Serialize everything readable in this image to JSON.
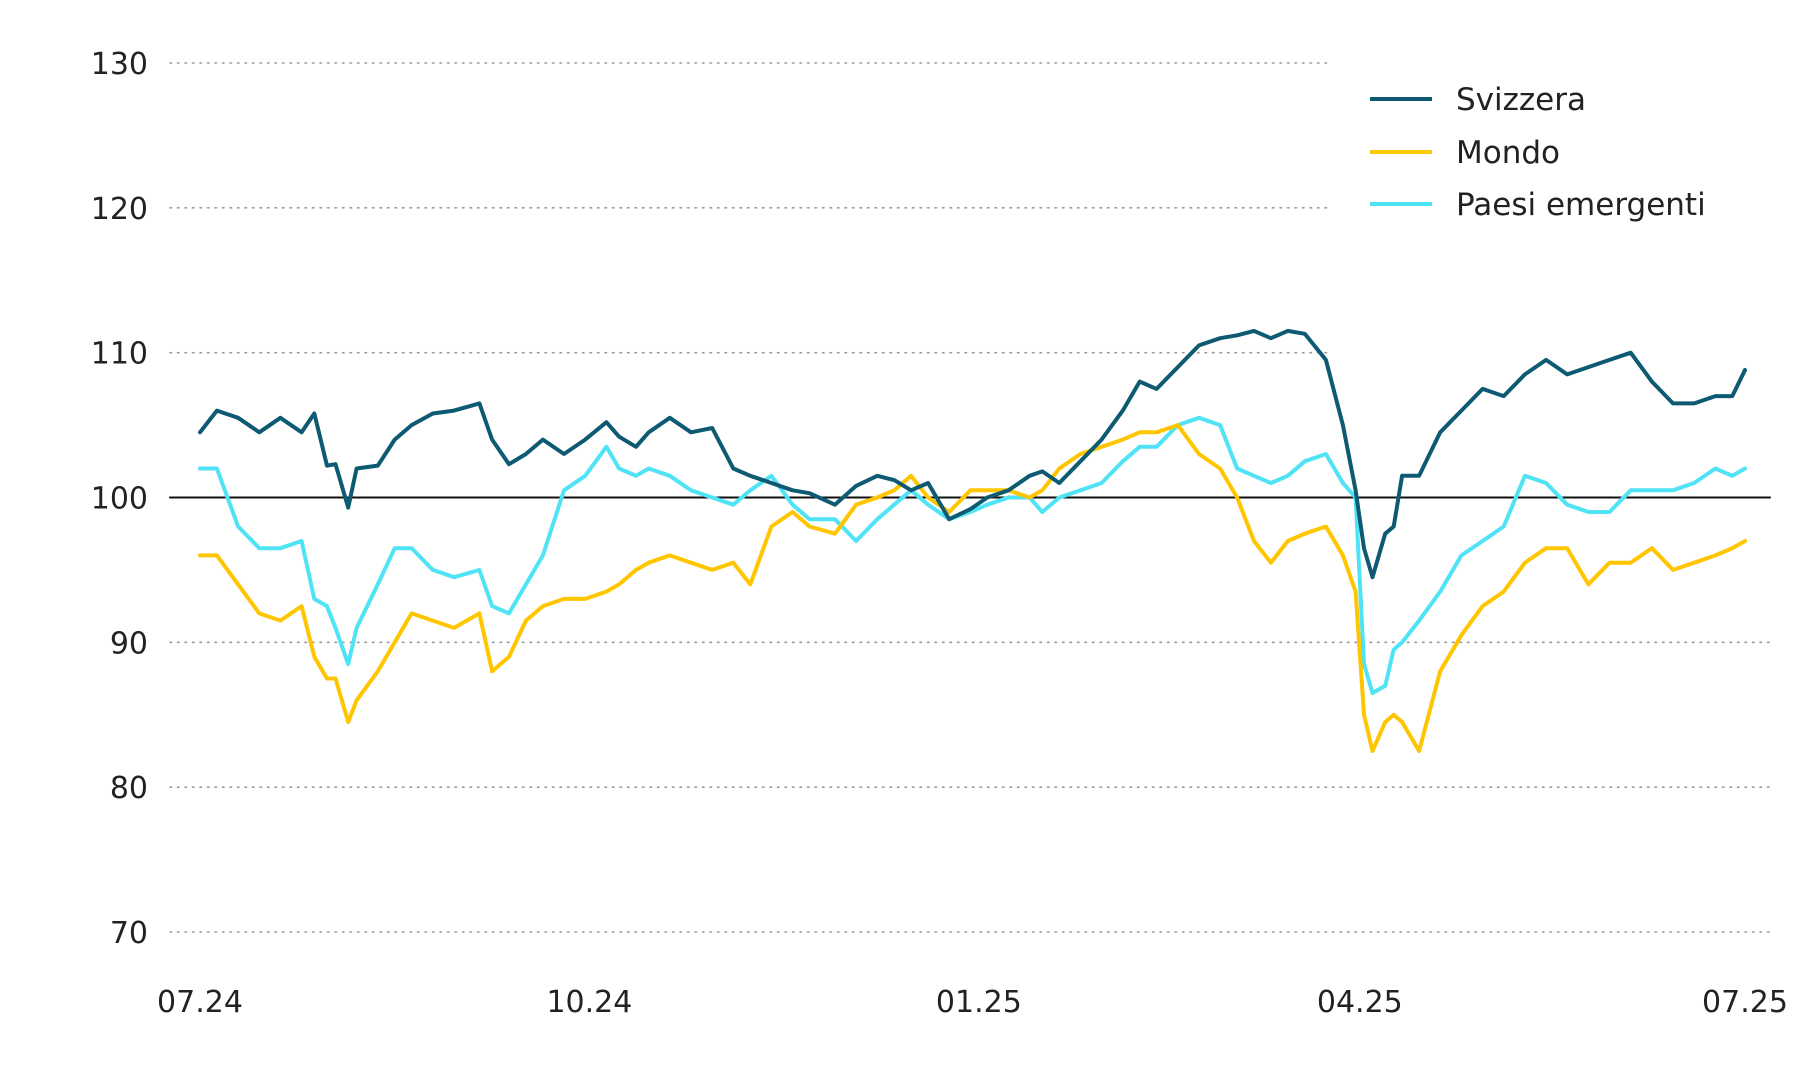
{
  "chart_data": {
    "type": "line",
    "title": "",
    "xlabel": "",
    "ylabel": "",
    "ylim": [
      70,
      130
    ],
    "xlim": [
      "2024-07-01",
      "2025-07-01"
    ],
    "yticks": [
      70,
      80,
      90,
      100,
      110,
      120,
      130
    ],
    "ytick_labels": [
      "70",
      "80",
      "90",
      "100",
      "110",
      "120",
      "130"
    ],
    "xticks": [
      "2024-07-01",
      "2024-10-01",
      "2025-01-01",
      "2025-04-01",
      "2025-07-01"
    ],
    "xtick_labels": [
      "07.24",
      "10.24",
      "01.25",
      "04.25",
      "07.25"
    ],
    "grid": "horizontal dotted",
    "reference_line": 100,
    "legend_position": "top-right",
    "series": [
      {
        "name": "Svizzera",
        "color": "#0d5a72",
        "x": [
          "2024-07-01",
          "2024-07-05",
          "2024-07-10",
          "2024-07-15",
          "2024-07-20",
          "2024-07-25",
          "2024-07-28",
          "2024-07-31",
          "2024-08-02",
          "2024-08-05",
          "2024-08-07",
          "2024-08-12",
          "2024-08-16",
          "2024-08-20",
          "2024-08-25",
          "2024-08-30",
          "2024-09-05",
          "2024-09-08",
          "2024-09-12",
          "2024-09-16",
          "2024-09-20",
          "2024-09-25",
          "2024-09-30",
          "2024-10-05",
          "2024-10-08",
          "2024-10-12",
          "2024-10-15",
          "2024-10-20",
          "2024-10-25",
          "2024-10-30",
          "2024-11-04",
          "2024-11-08",
          "2024-11-13",
          "2024-11-18",
          "2024-11-22",
          "2024-11-28",
          "2024-12-03",
          "2024-12-08",
          "2024-12-12",
          "2024-12-16",
          "2024-12-20",
          "2024-12-25",
          "2024-12-30",
          "2025-01-03",
          "2025-01-08",
          "2025-01-13",
          "2025-01-16",
          "2025-01-20",
          "2025-01-25",
          "2025-01-30",
          "2025-02-04",
          "2025-02-08",
          "2025-02-12",
          "2025-02-17",
          "2025-02-22",
          "2025-02-27",
          "2025-03-03",
          "2025-03-07",
          "2025-03-11",
          "2025-03-15",
          "2025-03-19",
          "2025-03-24",
          "2025-03-28",
          "2025-03-31",
          "2025-04-02",
          "2025-04-04",
          "2025-04-07",
          "2025-04-09",
          "2025-04-11",
          "2025-04-15",
          "2025-04-20",
          "2025-04-25",
          "2025-04-30",
          "2025-05-05",
          "2025-05-10",
          "2025-05-15",
          "2025-05-20",
          "2025-05-25",
          "2025-05-30",
          "2025-06-04",
          "2025-06-09",
          "2025-06-14",
          "2025-06-19",
          "2025-06-24",
          "2025-06-28",
          "2025-07-01"
        ],
        "values": [
          104.5,
          106,
          105.5,
          104.5,
          105.5,
          104.5,
          105.8,
          102.2,
          102.3,
          99.3,
          102,
          102.2,
          104,
          105,
          105.8,
          106,
          106.5,
          104,
          102.3,
          103,
          104,
          103,
          104,
          105.2,
          104.2,
          103.5,
          104.5,
          105.5,
          104.5,
          104.8,
          102,
          101.5,
          101,
          100.5,
          100.3,
          99.5,
          100.8,
          101.5,
          101.2,
          100.5,
          101,
          98.5,
          99.2,
          100,
          100.5,
          101.5,
          101.8,
          101,
          102.5,
          104,
          106,
          108,
          107.5,
          109,
          110.5,
          111,
          111.2,
          111.5,
          111,
          111.5,
          111.3,
          109.5,
          105,
          100.5,
          96.5,
          94.5,
          97.5,
          98,
          101.5,
          101.5,
          104.5,
          106,
          107.5,
          107,
          108.5,
          109.5,
          108.5,
          109,
          109.5,
          110,
          108,
          106.5,
          106.5,
          107,
          107,
          108.8
        ]
      },
      {
        "name": "Mondo",
        "color": "#ffc600",
        "x": [
          "2024-07-01",
          "2024-07-05",
          "2024-07-10",
          "2024-07-15",
          "2024-07-20",
          "2024-07-25",
          "2024-07-28",
          "2024-07-31",
          "2024-08-02",
          "2024-08-05",
          "2024-08-07",
          "2024-08-12",
          "2024-08-16",
          "2024-08-20",
          "2024-08-25",
          "2024-08-30",
          "2024-09-05",
          "2024-09-08",
          "2024-09-12",
          "2024-09-16",
          "2024-09-20",
          "2024-09-25",
          "2024-09-30",
          "2024-10-05",
          "2024-10-08",
          "2024-10-12",
          "2024-10-15",
          "2024-10-20",
          "2024-10-25",
          "2024-10-30",
          "2024-11-04",
          "2024-11-08",
          "2024-11-13",
          "2024-11-18",
          "2024-11-22",
          "2024-11-28",
          "2024-12-03",
          "2024-12-08",
          "2024-12-12",
          "2024-12-16",
          "2024-12-20",
          "2024-12-25",
          "2024-12-30",
          "2025-01-03",
          "2025-01-08",
          "2025-01-13",
          "2025-01-16",
          "2025-01-20",
          "2025-01-25",
          "2025-01-30",
          "2025-02-04",
          "2025-02-08",
          "2025-02-12",
          "2025-02-17",
          "2025-02-22",
          "2025-02-27",
          "2025-03-03",
          "2025-03-07",
          "2025-03-11",
          "2025-03-15",
          "2025-03-19",
          "2025-03-24",
          "2025-03-28",
          "2025-03-31",
          "2025-04-02",
          "2025-04-04",
          "2025-04-07",
          "2025-04-09",
          "2025-04-11",
          "2025-04-15",
          "2025-04-20",
          "2025-04-25",
          "2025-04-30",
          "2025-05-05",
          "2025-05-10",
          "2025-05-15",
          "2025-05-20",
          "2025-05-25",
          "2025-05-30",
          "2025-06-04",
          "2025-06-09",
          "2025-06-14",
          "2025-06-19",
          "2025-06-24",
          "2025-06-28",
          "2025-07-01"
        ],
        "values": [
          96,
          96,
          94,
          92,
          91.5,
          92.5,
          89,
          87.5,
          87.5,
          84.5,
          86,
          88,
          90,
          92,
          91.5,
          91,
          92,
          88,
          89,
          91.5,
          92.5,
          93,
          93,
          93.5,
          94,
          95,
          95.5,
          96,
          95.5,
          95,
          95.5,
          94,
          98,
          99,
          98,
          97.5,
          99.5,
          100,
          100.5,
          101.5,
          100,
          99,
          100.5,
          100.5,
          100.5,
          100,
          100.5,
          102,
          103,
          103.5,
          104,
          104.5,
          104.5,
          105,
          103,
          102,
          100,
          97,
          95.5,
          97,
          97.5,
          98,
          96,
          93.5,
          85,
          82.5,
          84.5,
          85,
          84.5,
          82.5,
          88,
          90.5,
          92.5,
          93.5,
          95.5,
          96.5,
          96.5,
          94,
          95.5,
          95.5,
          96.5,
          95,
          95.5,
          96,
          96.5,
          97
        ]
      },
      {
        "name": "Paesi emergenti",
        "color": "#4fe3f5",
        "x": [
          "2024-07-01",
          "2024-07-05",
          "2024-07-10",
          "2024-07-15",
          "2024-07-20",
          "2024-07-25",
          "2024-07-28",
          "2024-07-31",
          "2024-08-02",
          "2024-08-05",
          "2024-08-07",
          "2024-08-12",
          "2024-08-16",
          "2024-08-20",
          "2024-08-25",
          "2024-08-30",
          "2024-09-05",
          "2024-09-08",
          "2024-09-12",
          "2024-09-16",
          "2024-09-20",
          "2024-09-25",
          "2024-09-30",
          "2024-10-05",
          "2024-10-08",
          "2024-10-12",
          "2024-10-15",
          "2024-10-20",
          "2024-10-25",
          "2024-10-30",
          "2024-11-04",
          "2024-11-08",
          "2024-11-13",
          "2024-11-18",
          "2024-11-22",
          "2024-11-28",
          "2024-12-03",
          "2024-12-08",
          "2024-12-12",
          "2024-12-16",
          "2024-12-20",
          "2024-12-25",
          "2024-12-30",
          "2025-01-03",
          "2025-01-08",
          "2025-01-13",
          "2025-01-16",
          "2025-01-20",
          "2025-01-25",
          "2025-01-30",
          "2025-02-04",
          "2025-02-08",
          "2025-02-12",
          "2025-02-17",
          "2025-02-22",
          "2025-02-27",
          "2025-03-03",
          "2025-03-07",
          "2025-03-11",
          "2025-03-15",
          "2025-03-19",
          "2025-03-24",
          "2025-03-28",
          "2025-03-31",
          "2025-04-02",
          "2025-04-04",
          "2025-04-07",
          "2025-04-09",
          "2025-04-11",
          "2025-04-15",
          "2025-04-20",
          "2025-04-25",
          "2025-04-30",
          "2025-05-05",
          "2025-05-10",
          "2025-05-15",
          "2025-05-20",
          "2025-05-25",
          "2025-05-30",
          "2025-06-04",
          "2025-06-09",
          "2025-06-14",
          "2025-06-19",
          "2025-06-24",
          "2025-06-28",
          "2025-07-01"
        ],
        "values": [
          102,
          102,
          98,
          96.5,
          96.5,
          97,
          93,
          92.5,
          91,
          88.5,
          91,
          94,
          96.5,
          96.5,
          95,
          94.5,
          95,
          92.5,
          92,
          94,
          96,
          100.5,
          101.5,
          103.5,
          102,
          101.5,
          102,
          101.5,
          100.5,
          100,
          99.5,
          100.5,
          101.5,
          99.5,
          98.5,
          98.5,
          97,
          98.5,
          99.5,
          100.5,
          99.5,
          98.5,
          99,
          99.5,
          100,
          100,
          99,
          100,
          100.5,
          101,
          102.5,
          103.5,
          103.5,
          105,
          105.5,
          105,
          102,
          101.5,
          101,
          101.5,
          102.5,
          103,
          101,
          100,
          88.5,
          86.5,
          87,
          89.5,
          90,
          91.5,
          93.5,
          96,
          97,
          98,
          101.5,
          101,
          99.5,
          99,
          99,
          100.5,
          100.5,
          100.5,
          101,
          102,
          101.5,
          102
        ]
      }
    ]
  },
  "legend": {
    "items": [
      {
        "label": "Svizzera",
        "color": "#0d5a72"
      },
      {
        "label": "Mondo",
        "color": "#ffc600"
      },
      {
        "label": "Paesi emergenti",
        "color": "#4fe3f5"
      }
    ]
  },
  "colors": {
    "grid": "#9a9a9a",
    "baseline": "#111111",
    "text": "#222222"
  }
}
